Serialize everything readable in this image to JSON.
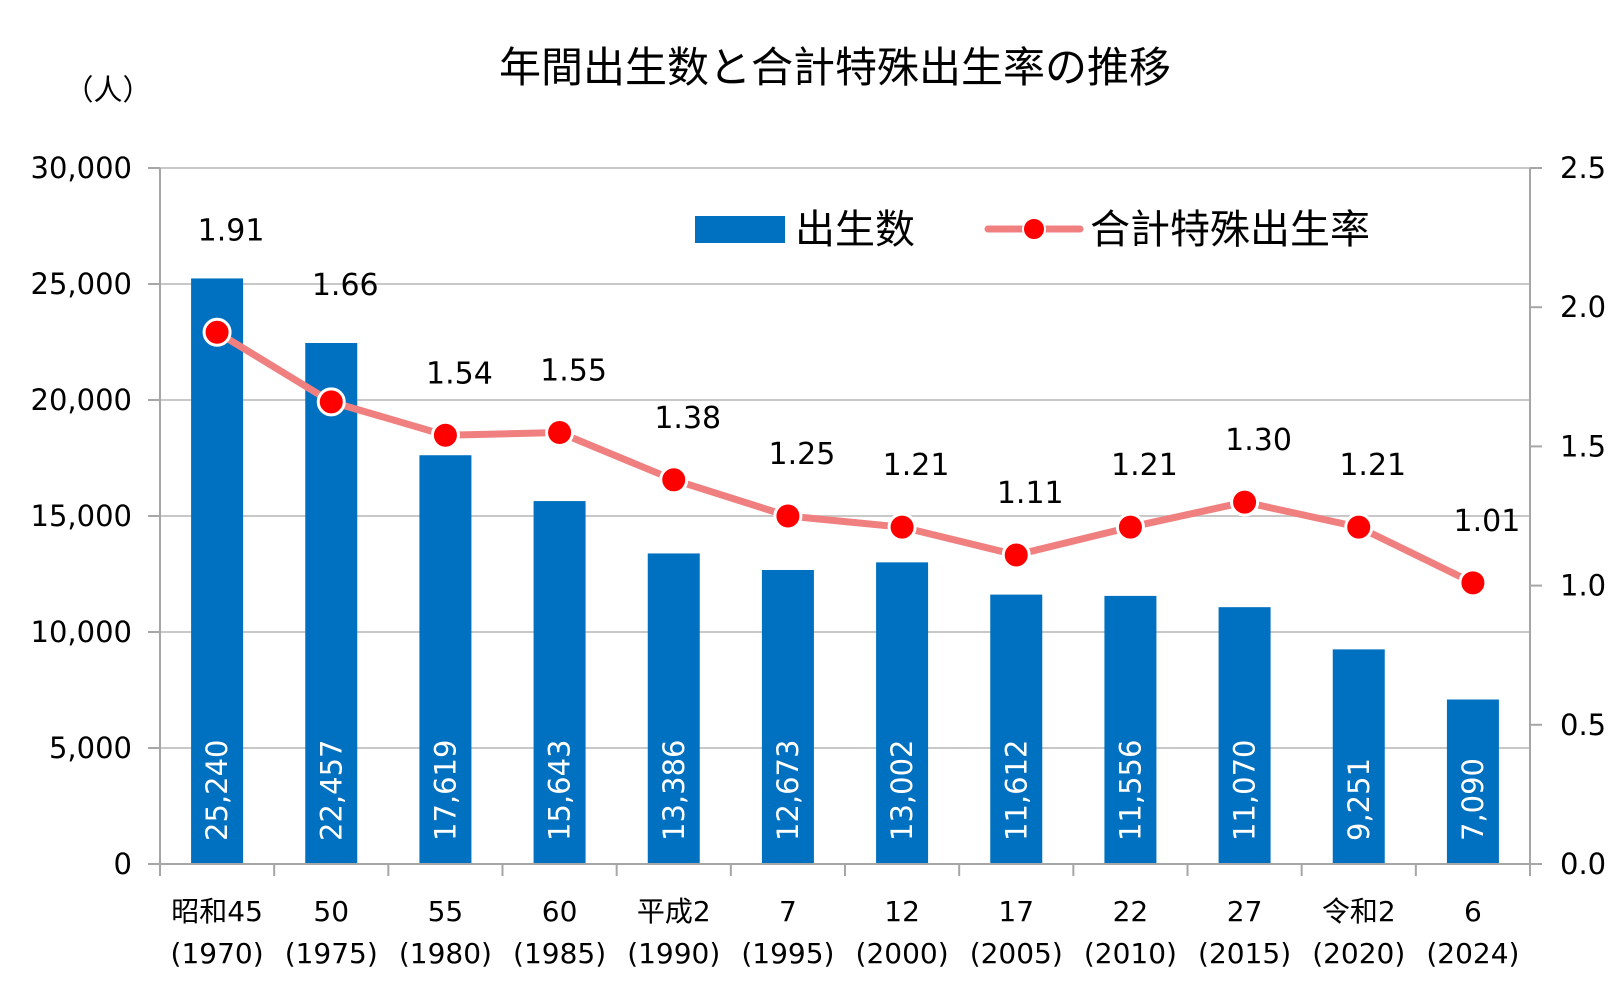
{
  "chart_data": {
    "type": "bar",
    "title": "年間出生数と合計特殊出生率の推移",
    "y_unit_label": "（人）",
    "categories": [
      {
        "era": "昭和45",
        "year": "(1970)"
      },
      {
        "era": "50",
        "year": "(1975)"
      },
      {
        "era": "55",
        "year": "(1980)"
      },
      {
        "era": "60",
        "year": "(1985)"
      },
      {
        "era": "平成2",
        "year": "(1990)"
      },
      {
        "era": "7",
        "year": "(1995)"
      },
      {
        "era": "12",
        "year": "(2000)"
      },
      {
        "era": "17",
        "year": "(2005)"
      },
      {
        "era": "22",
        "year": "(2010)"
      },
      {
        "era": "27",
        "year": "(2015)"
      },
      {
        "era": "令和2",
        "year": "(2020)"
      },
      {
        "era": "6",
        "year": "(2024)"
      }
    ],
    "series": [
      {
        "name": "出生数",
        "type": "bar",
        "axis": "left",
        "color": "#0070C0",
        "values": [
          25240,
          22457,
          17619,
          15643,
          13386,
          12673,
          13002,
          11612,
          11556,
          11070,
          9251,
          7090
        ],
        "labels": [
          "25,240",
          "22,457",
          "17,619",
          "15,643",
          "13,386",
          "12,673",
          "13,002",
          "11,612",
          "11,556",
          "11,070",
          "9,251",
          "7,090"
        ]
      },
      {
        "name": "合計特殊出生率",
        "type": "line",
        "axis": "right",
        "line_color": "#F08080",
        "marker_color": "#FF0000",
        "values": [
          1.91,
          1.66,
          1.54,
          1.55,
          1.38,
          1.25,
          1.21,
          1.11,
          1.21,
          1.3,
          1.21,
          1.01
        ],
        "labels": [
          "1.91",
          "1.66",
          "1.54",
          "1.55",
          "1.38",
          "1.25",
          "1.21",
          "1.11",
          "1.21",
          "1.30",
          "1.21",
          "1.01"
        ]
      }
    ],
    "y_left": {
      "min": 0,
      "max": 30000,
      "ticks": [
        0,
        5000,
        10000,
        15000,
        20000,
        25000,
        30000
      ],
      "tick_labels": [
        "0",
        "5,000",
        "10,000",
        "15,000",
        "20,000",
        "25,000",
        "30,000"
      ]
    },
    "y_right": {
      "min": 0,
      "max": 2.5,
      "ticks": [
        0,
        0.5,
        1.0,
        1.5,
        2.0,
        2.5
      ],
      "tick_labels": [
        "0.0",
        "0.5",
        "1.0",
        "1.5",
        "2.0",
        "2.5"
      ]
    },
    "grid": true,
    "legend_position": "top-right"
  }
}
